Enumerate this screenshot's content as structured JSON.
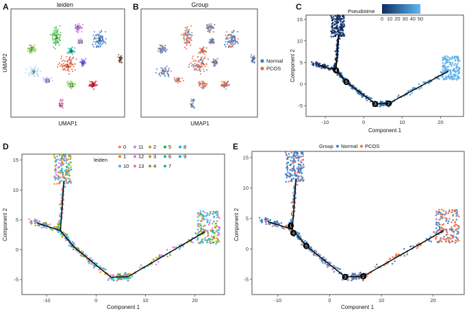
{
  "figure": {
    "panel_letters": [
      "A",
      "B",
      "C",
      "D",
      "E"
    ]
  },
  "chart_data": [
    {
      "panel": "A",
      "type": "scatter",
      "title": "leiden",
      "xlabel": "UMAP1",
      "ylabel": "UMAP2",
      "cluster_labels": [
        "0",
        "1",
        "2",
        "3",
        "4",
        "5",
        "6",
        "7",
        "8",
        "9",
        "10",
        "11",
        "12",
        "13"
      ],
      "colors": {
        "0": "#4f86c6",
        "1": "#e06040",
        "2": "#3fbf3f",
        "3": "#d62839",
        "4": "#7b68ee",
        "5": "#8c564b",
        "6": "#c97ee0",
        "7": "#7cc242",
        "8": "#20c4a8",
        "9": "#a8d4f0",
        "10": "#d8b4f8",
        "11": "#88e060",
        "12": "#f07ab8",
        "13": "#b0b0ff"
      }
    },
    {
      "panel": "B",
      "type": "scatter",
      "title": "Group",
      "xlabel": "UMAP1",
      "legend": [
        "Normal",
        "PCOS"
      ],
      "colors": {
        "Normal": "#3a7bc8",
        "PCOS": "#ee6a3c"
      }
    },
    {
      "panel": "C",
      "type": "scatter",
      "xlabel": "Component 1",
      "ylabel": "Component 2",
      "xlim": [
        -15,
        26
      ],
      "ylim": [
        -7.5,
        16
      ],
      "xticks": [
        "-10",
        "0",
        "10",
        "20"
      ],
      "yticks": [
        "-5",
        "0",
        "5",
        "10",
        "15"
      ],
      "legend_title": "Pseudotime",
      "colorbar_ticks": [
        "0",
        "10",
        "20",
        "30",
        "40",
        "50"
      ],
      "colorbar_range": [
        0,
        50
      ],
      "colors": {
        "low": "#0f2b63",
        "high": "#5fb8f0"
      },
      "tree": {
        "nodes": [
          {
            "id": "4",
            "x": -7.2,
            "y": 3.2
          },
          {
            "id": "5",
            "x": -4.5,
            "y": 0.5
          },
          {
            "id": "3",
            "x": 3.0,
            "y": -4.6
          },
          {
            "id": "2",
            "x": 6.5,
            "y": -4.5
          }
        ],
        "edges": [
          [
            [
              -7.2,
              3.2
            ],
            [
              -6.5,
              11.5
            ]
          ],
          [
            [
              -7.2,
              3.2
            ],
            [
              -12.0,
              4.5
            ]
          ],
          [
            [
              -7.2,
              3.2
            ],
            [
              -4.5,
              0.5
            ]
          ],
          [
            [
              -4.5,
              0.5
            ],
            [
              3.0,
              -4.6
            ]
          ],
          [
            [
              3.0,
              -4.6
            ],
            [
              6.5,
              -4.5
            ]
          ],
          [
            [
              6.5,
              -4.5
            ],
            [
              22.0,
              3.0
            ]
          ]
        ]
      },
      "branches": [
        {
          "x0": -8.5,
          "y0": 11.0,
          "x1": -5.0,
          "y1": 16.0,
          "t": 0.0,
          "kind": "blob"
        },
        {
          "x0": -7.5,
          "y0": 3.5,
          "x1": -6.5,
          "y1": 11.0,
          "t": 0.05,
          "kind": "line"
        },
        {
          "x0": -13.5,
          "y0": 4.8,
          "x1": -7.5,
          "y1": 3.5,
          "t": 0.15,
          "kind": "line"
        },
        {
          "x0": -7.5,
          "y0": 3.5,
          "x1": -4.5,
          "y1": 0.5,
          "t": 0.3,
          "kind": "line"
        },
        {
          "x0": -4.5,
          "y0": 0.5,
          "x1": 3.0,
          "y1": -4.6,
          "t": 0.45,
          "kind": "line"
        },
        {
          "x0": 3.0,
          "y0": -4.6,
          "x1": 6.5,
          "y1": -4.5,
          "t": 0.55,
          "kind": "line"
        },
        {
          "x0": 6.5,
          "y0": -4.5,
          "x1": 21.0,
          "y1": 2.5,
          "t": 0.75,
          "kind": "line"
        },
        {
          "x0": 20.5,
          "y0": 1.0,
          "x1": 25.0,
          "y1": 6.5,
          "t": 0.95,
          "kind": "blob"
        }
      ]
    },
    {
      "panel": "D",
      "type": "scatter",
      "xlabel": "Component 1",
      "ylabel": "Component 2",
      "xlim": [
        -15,
        26
      ],
      "ylim": [
        -7.5,
        16
      ],
      "xticks": [
        "-10",
        "0",
        "10",
        "20"
      ],
      "yticks": [
        "-5",
        "0",
        "5",
        "10",
        "15"
      ],
      "legend_title": "leiden",
      "legend": [
        "0",
        "11",
        "2",
        "5",
        "8",
        "1",
        "12",
        "3",
        "6",
        "9",
        "10",
        "13",
        "4",
        "7"
      ],
      "colors": {
        "0": "#f8766d",
        "1": "#e58700",
        "2": "#c99800",
        "3": "#a3a500",
        "4": "#6bb100",
        "5": "#00ba38",
        "6": "#00bf7d",
        "7": "#00c0af",
        "8": "#00bcd8",
        "9": "#00b0f6",
        "10": "#619cff",
        "11": "#b983ff",
        "12": "#e76bf3",
        "13": "#fd61d1"
      },
      "tree": {
        "edges": [
          [
            [
              -7.2,
              3.2
            ],
            [
              -6.5,
              11.5
            ]
          ],
          [
            [
              -7.2,
              3.2
            ],
            [
              -12.0,
              4.5
            ]
          ],
          [
            [
              -7.2,
              3.2
            ],
            [
              -4.5,
              0.5
            ]
          ],
          [
            [
              -4.5,
              0.5
            ],
            [
              3.0,
              -4.6
            ]
          ],
          [
            [
              3.0,
              -4.6
            ],
            [
              6.5,
              -4.5
            ]
          ],
          [
            [
              6.5,
              -4.5
            ],
            [
              22.0,
              3.0
            ]
          ]
        ]
      }
    },
    {
      "panel": "E",
      "type": "scatter",
      "xlabel": "Component 1",
      "ylabel": "Component 2",
      "xlim": [
        -15,
        26
      ],
      "ylim": [
        -7.5,
        16
      ],
      "xticks": [
        "-10",
        "0",
        "10",
        "20"
      ],
      "yticks": [
        "-5",
        "0",
        "5",
        "10",
        "15"
      ],
      "legend_title": "Group",
      "legend": [
        "Normal",
        "PCOS"
      ],
      "colors": {
        "Normal": "#3a7bc8",
        "PCOS": "#ee6a3c"
      },
      "tree": {
        "nodes": [
          {
            "id": "1",
            "x": -7.5,
            "y": 3.8
          },
          {
            "id": "4",
            "x": -7.0,
            "y": 2.6
          },
          {
            "id": "5",
            "x": -4.5,
            "y": 0.5
          },
          {
            "id": "3",
            "x": 3.0,
            "y": -4.6
          },
          {
            "id": "2",
            "x": 6.5,
            "y": -4.5
          }
        ],
        "edges": [
          [
            [
              -7.2,
              3.2
            ],
            [
              -6.5,
              11.5
            ]
          ],
          [
            [
              -7.2,
              3.2
            ],
            [
              -12.0,
              4.5
            ]
          ],
          [
            [
              -7.2,
              3.2
            ],
            [
              -4.5,
              0.5
            ]
          ],
          [
            [
              -4.5,
              0.5
            ],
            [
              3.0,
              -4.6
            ]
          ],
          [
            [
              3.0,
              -4.6
            ],
            [
              6.5,
              -4.5
            ]
          ],
          [
            [
              6.5,
              -4.5
            ],
            [
              22.0,
              3.0
            ]
          ]
        ]
      }
    }
  ]
}
